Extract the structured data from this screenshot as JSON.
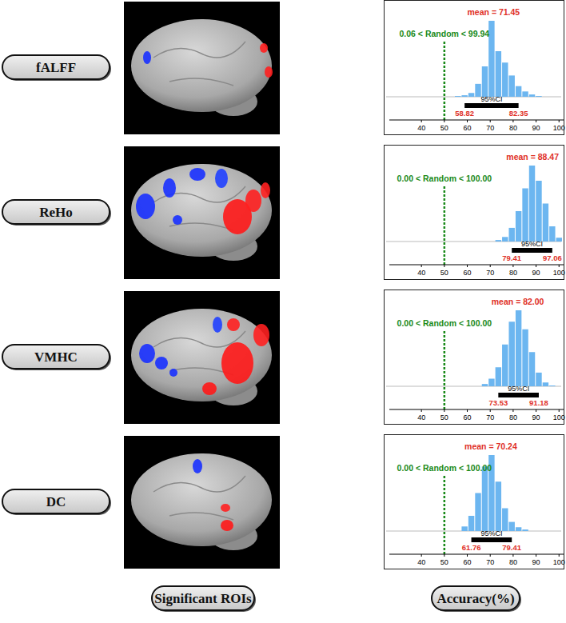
{
  "column_labels": [
    "Significant ROIs",
    "Accuracy(%)"
  ],
  "chart_data": [
    {
      "type": "histogram",
      "title": "fALFF",
      "color": "#6cb6f0",
      "tick_labels": "x",
      "bins": [
        54.41,
        57.35,
        60.29,
        63.24,
        66.18,
        69.12,
        72.06,
        75.0,
        77.94,
        80.88,
        83.82,
        86.76,
        89.71,
        92.65
      ],
      "counts": [
        1,
        2,
        5,
        17,
        40,
        100,
        60,
        45,
        28,
        14,
        7,
        3,
        1
      ],
      "xlim": [
        26,
        102
      ],
      "ylim": [
        0,
        100
      ],
      "xticks": [
        40,
        50,
        60,
        70,
        80,
        90,
        100
      ],
      "mean": {
        "value": 71.45,
        "label": "mean = 71.45"
      },
      "random": {
        "value": 50,
        "label": "0.06 < Random < 99.94"
      },
      "ci": {
        "label": "95%CI",
        "lower": {
          "value": 58.82,
          "label": "58.82"
        },
        "upper": {
          "value": 82.35,
          "label": "82.35"
        }
      }
    },
    {
      "type": "histogram",
      "title": "ReHo",
      "color": "#6cb6f0",
      "tick_labels": "x",
      "bins": [
        72.06,
        75.0,
        77.94,
        80.88,
        83.82,
        86.76,
        89.71,
        92.65,
        95.59,
        98.53,
        101.47
      ],
      "counts": [
        2,
        6,
        18,
        40,
        70,
        100,
        80,
        50,
        20,
        5
      ],
      "xlim": [
        26,
        102
      ],
      "ylim": [
        0,
        100
      ],
      "xticks": [
        40,
        50,
        60,
        70,
        80,
        90,
        100
      ],
      "mean": {
        "value": 88.47,
        "label": "mean = 88.47"
      },
      "random": {
        "value": 50,
        "label": "0.00 < Random < 100.00"
      },
      "ci": {
        "label": "95%CI",
        "lower": {
          "value": 79.41,
          "label": "79.41"
        },
        "upper": {
          "value": 97.06,
          "label": "97.06"
        }
      }
    },
    {
      "type": "histogram",
      "title": "VMHC",
      "color": "#6cb6f0",
      "tick_labels": "x",
      "bins": [
        66.18,
        69.12,
        72.06,
        75.0,
        77.94,
        80.88,
        83.82,
        86.76,
        89.71,
        92.65,
        95.59,
        98.53
      ],
      "counts": [
        3,
        10,
        25,
        55,
        85,
        100,
        75,
        45,
        18,
        5,
        1
      ],
      "xlim": [
        26,
        102
      ],
      "ylim": [
        0,
        100
      ],
      "xticks": [
        40,
        50,
        60,
        70,
        80,
        90,
        100
      ],
      "mean": {
        "value": 82.0,
        "label": "mean = 82.00"
      },
      "random": {
        "value": 50,
        "label": "0.00 < Random < 100.00"
      },
      "ci": {
        "label": "95%CI",
        "lower": {
          "value": 73.53,
          "label": "73.53"
        },
        "upper": {
          "value": 91.18,
          "label": "91.18"
        }
      }
    },
    {
      "type": "histogram",
      "title": "DC",
      "color": "#6cb6f0",
      "tick_labels": "x",
      "bins": [
        57.35,
        60.29,
        63.24,
        66.18,
        69.12,
        72.06,
        75.0,
        77.94,
        80.88,
        83.82,
        86.76
      ],
      "counts": [
        6,
        20,
        50,
        85,
        100,
        65,
        30,
        12,
        5,
        2
      ],
      "xlim": [
        26,
        102
      ],
      "ylim": [
        0,
        100
      ],
      "xticks": [
        40,
        50,
        60,
        70,
        80,
        90,
        100
      ],
      "mean": {
        "value": 70.24,
        "label": "mean = 70.24"
      },
      "random": {
        "value": 50,
        "label": "0.00 < Random < 100.00"
      },
      "ci": {
        "label": "95%CI",
        "lower": {
          "value": 61.76,
          "label": "61.76"
        },
        "upper": {
          "value": 79.41,
          "label": "79.41"
        }
      }
    }
  ]
}
